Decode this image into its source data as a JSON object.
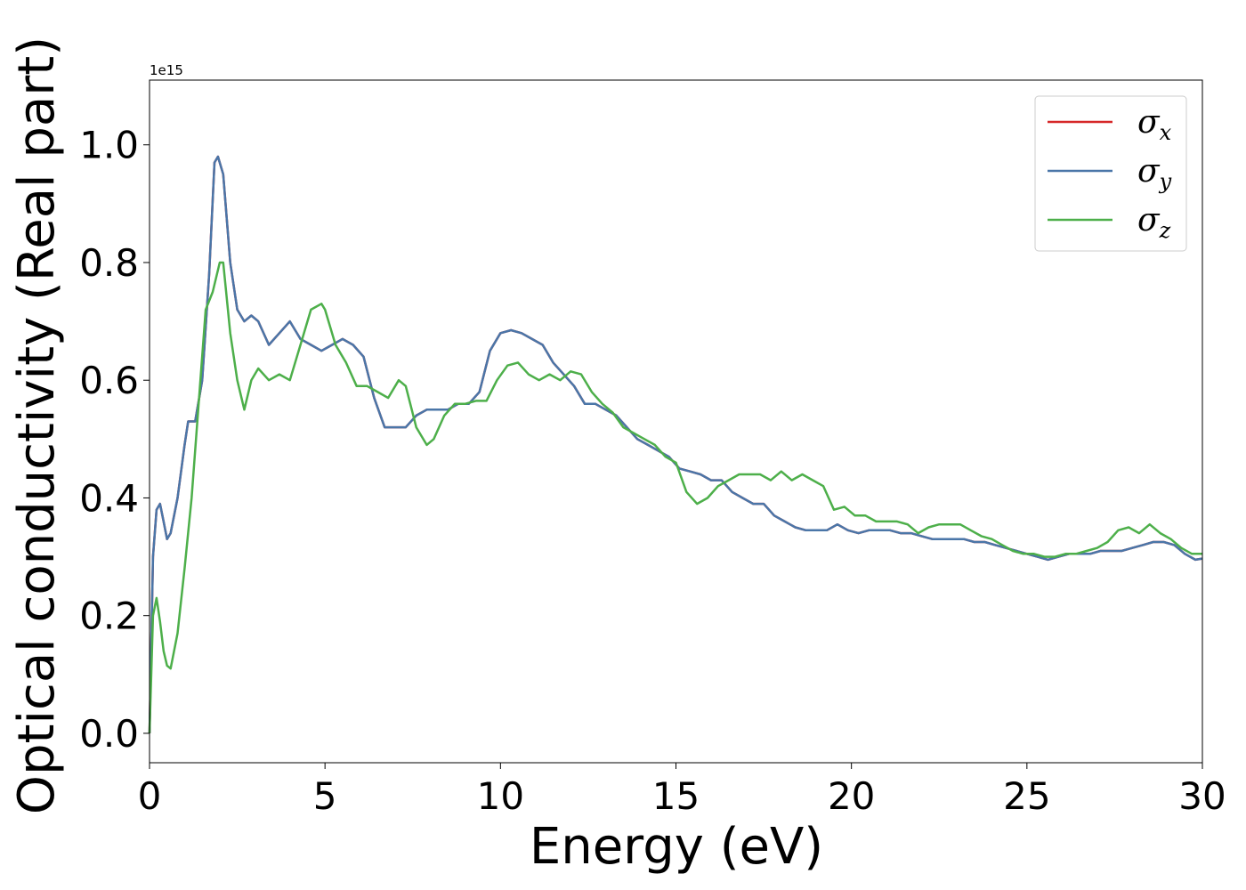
{
  "chart_data": {
    "type": "line",
    "title": "",
    "xlabel": "Energy (eV)",
    "ylabel": "Optical conductivity (Real part)",
    "y_offset_text": "1e15",
    "y_multiplier": 1000000000000000.0,
    "xlim": [
      0,
      30
    ],
    "ylim": [
      -0.05,
      1.11
    ],
    "xticks": [
      0,
      5,
      10,
      15,
      20,
      25,
      30
    ],
    "xtick_labels": [
      "0",
      "5",
      "10",
      "15",
      "20",
      "25",
      "30"
    ],
    "yticks": [
      0.0,
      0.2,
      0.4,
      0.6,
      0.8,
      1.0
    ],
    "ytick_labels": [
      "0.0",
      "0.2",
      "0.4",
      "0.6",
      "0.8",
      "1.0"
    ],
    "grid": false,
    "legend_position": "top-right",
    "series": [
      {
        "name": "σx",
        "symbol": "σ",
        "subscript": "x",
        "color": "#d62728",
        "x": [
          0,
          0.1,
          0.2,
          0.3,
          0.4,
          0.5,
          0.6,
          0.8,
          1.0,
          1.1,
          1.3,
          1.5,
          1.7,
          1.85,
          1.95,
          2.1,
          2.3,
          2.5,
          2.7,
          2.9,
          3.1,
          3.4,
          3.7,
          4.0,
          4.3,
          4.6,
          4.9,
          5.2,
          5.5,
          5.8,
          6.1,
          6.4,
          6.7,
          7.0,
          7.3,
          7.6,
          7.9,
          8.2,
          8.5,
          8.8,
          9.1,
          9.4,
          9.7,
          10.0,
          10.3,
          10.6,
          10.9,
          11.2,
          11.5,
          11.8,
          12.1,
          12.4,
          12.7,
          13.0,
          13.3,
          13.6,
          13.9,
          14.2,
          14.5,
          14.8,
          15.1,
          15.4,
          15.7,
          16.0,
          16.3,
          16.6,
          16.9,
          17.2,
          17.5,
          17.8,
          18.1,
          18.4,
          18.7,
          19.0,
          19.3,
          19.6,
          19.9,
          20.2,
          20.5,
          20.8,
          21.1,
          21.4,
          21.7,
          22.0,
          22.3,
          22.6,
          22.9,
          23.2,
          23.5,
          23.8,
          24.1,
          24.4,
          24.7,
          25.0,
          25.3,
          25.6,
          25.9,
          26.2,
          26.5,
          26.8,
          27.1,
          27.4,
          27.7,
          28.0,
          28.3,
          28.6,
          28.9,
          29.2,
          29.5,
          29.8,
          30.0
        ],
        "y": [
          0.0,
          0.3,
          0.38,
          0.39,
          0.36,
          0.33,
          0.34,
          0.4,
          0.49,
          0.53,
          0.53,
          0.6,
          0.78,
          0.97,
          0.98,
          0.95,
          0.8,
          0.72,
          0.7,
          0.71,
          0.7,
          0.66,
          0.68,
          0.7,
          0.67,
          0.66,
          0.65,
          0.66,
          0.67,
          0.66,
          0.64,
          0.57,
          0.52,
          0.52,
          0.52,
          0.54,
          0.55,
          0.55,
          0.55,
          0.56,
          0.56,
          0.58,
          0.65,
          0.68,
          0.685,
          0.68,
          0.67,
          0.66,
          0.63,
          0.61,
          0.59,
          0.56,
          0.56,
          0.55,
          0.54,
          0.52,
          0.5,
          0.49,
          0.48,
          0.47,
          0.45,
          0.445,
          0.44,
          0.43,
          0.43,
          0.41,
          0.4,
          0.39,
          0.39,
          0.37,
          0.36,
          0.35,
          0.345,
          0.345,
          0.345,
          0.355,
          0.345,
          0.34,
          0.345,
          0.345,
          0.345,
          0.34,
          0.34,
          0.335,
          0.33,
          0.33,
          0.33,
          0.33,
          0.325,
          0.325,
          0.32,
          0.315,
          0.31,
          0.305,
          0.3,
          0.295,
          0.3,
          0.305,
          0.305,
          0.305,
          0.31,
          0.31,
          0.31,
          0.315,
          0.32,
          0.325,
          0.325,
          0.32,
          0.305,
          0.295,
          0.297
        ]
      },
      {
        "name": "σy",
        "symbol": "σ",
        "subscript": "y",
        "color": "#4a76a8",
        "x": [
          0,
          0.1,
          0.2,
          0.3,
          0.4,
          0.5,
          0.6,
          0.8,
          1.0,
          1.1,
          1.3,
          1.5,
          1.7,
          1.85,
          1.95,
          2.1,
          2.3,
          2.5,
          2.7,
          2.9,
          3.1,
          3.4,
          3.7,
          4.0,
          4.3,
          4.6,
          4.9,
          5.2,
          5.5,
          5.8,
          6.1,
          6.4,
          6.7,
          7.0,
          7.3,
          7.6,
          7.9,
          8.2,
          8.5,
          8.8,
          9.1,
          9.4,
          9.7,
          10.0,
          10.3,
          10.6,
          10.9,
          11.2,
          11.5,
          11.8,
          12.1,
          12.4,
          12.7,
          13.0,
          13.3,
          13.6,
          13.9,
          14.2,
          14.5,
          14.8,
          15.1,
          15.4,
          15.7,
          16.0,
          16.3,
          16.6,
          16.9,
          17.2,
          17.5,
          17.8,
          18.1,
          18.4,
          18.7,
          19.0,
          19.3,
          19.6,
          19.9,
          20.2,
          20.5,
          20.8,
          21.1,
          21.4,
          21.7,
          22.0,
          22.3,
          22.6,
          22.9,
          23.2,
          23.5,
          23.8,
          24.1,
          24.4,
          24.7,
          25.0,
          25.3,
          25.6,
          25.9,
          26.2,
          26.5,
          26.8,
          27.1,
          27.4,
          27.7,
          28.0,
          28.3,
          28.6,
          28.9,
          29.2,
          29.5,
          29.8,
          30.0
        ],
        "y": [
          0.0,
          0.3,
          0.38,
          0.39,
          0.36,
          0.33,
          0.34,
          0.4,
          0.49,
          0.53,
          0.53,
          0.6,
          0.78,
          0.97,
          0.98,
          0.95,
          0.8,
          0.72,
          0.7,
          0.71,
          0.7,
          0.66,
          0.68,
          0.7,
          0.67,
          0.66,
          0.65,
          0.66,
          0.67,
          0.66,
          0.64,
          0.57,
          0.52,
          0.52,
          0.52,
          0.54,
          0.55,
          0.55,
          0.55,
          0.56,
          0.56,
          0.58,
          0.65,
          0.68,
          0.685,
          0.68,
          0.67,
          0.66,
          0.63,
          0.61,
          0.59,
          0.56,
          0.56,
          0.55,
          0.54,
          0.52,
          0.5,
          0.49,
          0.48,
          0.47,
          0.45,
          0.445,
          0.44,
          0.43,
          0.43,
          0.41,
          0.4,
          0.39,
          0.39,
          0.37,
          0.36,
          0.35,
          0.345,
          0.345,
          0.345,
          0.355,
          0.345,
          0.34,
          0.345,
          0.345,
          0.345,
          0.34,
          0.34,
          0.335,
          0.33,
          0.33,
          0.33,
          0.33,
          0.325,
          0.325,
          0.32,
          0.315,
          0.31,
          0.305,
          0.3,
          0.295,
          0.3,
          0.305,
          0.305,
          0.305,
          0.31,
          0.31,
          0.31,
          0.315,
          0.32,
          0.325,
          0.325,
          0.32,
          0.305,
          0.295,
          0.297
        ]
      },
      {
        "name": "σz",
        "symbol": "σ",
        "subscript": "z",
        "color": "#4daf4a",
        "x": [
          0,
          0.1,
          0.2,
          0.3,
          0.4,
          0.5,
          0.6,
          0.8,
          1.0,
          1.2,
          1.4,
          1.6,
          1.8,
          2.0,
          2.1,
          2.3,
          2.5,
          2.7,
          2.9,
          3.1,
          3.4,
          3.7,
          4.0,
          4.3,
          4.6,
          4.9,
          5.0,
          5.3,
          5.6,
          5.9,
          6.2,
          6.5,
          6.8,
          7.1,
          7.3,
          7.6,
          7.9,
          8.1,
          8.4,
          8.7,
          9.0,
          9.3,
          9.6,
          9.9,
          10.2,
          10.5,
          10.8,
          11.1,
          11.4,
          11.7,
          12.0,
          12.3,
          12.6,
          12.9,
          13.2,
          13.5,
          13.8,
          14.1,
          14.4,
          14.7,
          15.0,
          15.3,
          15.6,
          15.9,
          16.2,
          16.5,
          16.8,
          17.1,
          17.4,
          17.7,
          18.0,
          18.3,
          18.6,
          18.9,
          19.2,
          19.5,
          19.8,
          20.1,
          20.4,
          20.7,
          21.0,
          21.3,
          21.6,
          21.9,
          22.2,
          22.5,
          22.8,
          23.1,
          23.4,
          23.7,
          24.0,
          24.3,
          24.6,
          24.9,
          25.2,
          25.5,
          25.8,
          26.1,
          26.4,
          26.7,
          27.0,
          27.3,
          27.6,
          27.9,
          28.2,
          28.5,
          28.8,
          29.1,
          29.4,
          29.7,
          30.0
        ],
        "y": [
          0.0,
          0.2,
          0.23,
          0.19,
          0.14,
          0.115,
          0.11,
          0.17,
          0.28,
          0.4,
          0.56,
          0.72,
          0.75,
          0.8,
          0.8,
          0.68,
          0.6,
          0.55,
          0.6,
          0.62,
          0.6,
          0.61,
          0.6,
          0.66,
          0.72,
          0.73,
          0.72,
          0.66,
          0.63,
          0.59,
          0.59,
          0.58,
          0.57,
          0.6,
          0.59,
          0.52,
          0.49,
          0.5,
          0.54,
          0.56,
          0.56,
          0.565,
          0.565,
          0.6,
          0.625,
          0.63,
          0.61,
          0.6,
          0.61,
          0.6,
          0.615,
          0.61,
          0.58,
          0.56,
          0.545,
          0.52,
          0.51,
          0.5,
          0.49,
          0.47,
          0.46,
          0.41,
          0.39,
          0.4,
          0.42,
          0.43,
          0.44,
          0.44,
          0.44,
          0.43,
          0.445,
          0.43,
          0.44,
          0.43,
          0.42,
          0.38,
          0.385,
          0.37,
          0.37,
          0.36,
          0.36,
          0.36,
          0.355,
          0.34,
          0.35,
          0.355,
          0.355,
          0.355,
          0.345,
          0.335,
          0.33,
          0.32,
          0.31,
          0.305,
          0.305,
          0.3,
          0.3,
          0.305,
          0.305,
          0.31,
          0.315,
          0.325,
          0.345,
          0.35,
          0.34,
          0.355,
          0.34,
          0.33,
          0.315,
          0.305,
          0.305
        ]
      }
    ]
  }
}
